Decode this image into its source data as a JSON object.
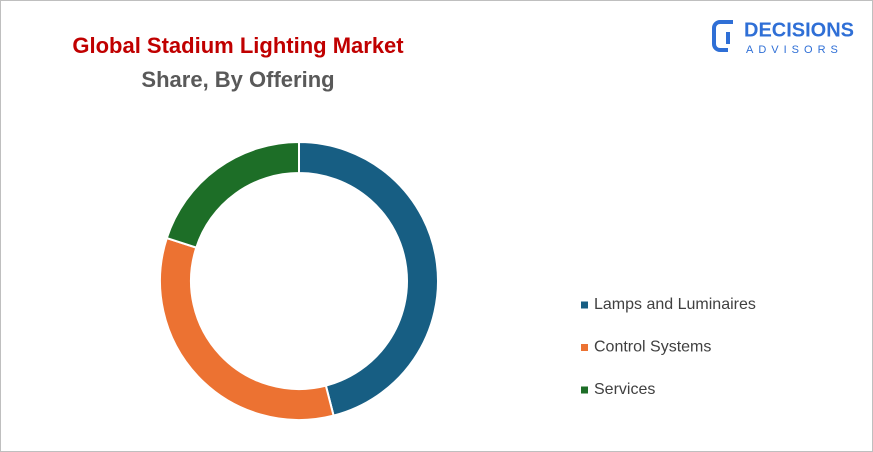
{
  "chart_data": {
    "type": "donut",
    "title": "Global Stadium Lighting Market",
    "subtitle": "Share, By Offering",
    "categories": [
      "Lamps and Luminaires",
      "Control Systems",
      "Services"
    ],
    "values": [
      46,
      34,
      20
    ],
    "colors": [
      "#175e83",
      "#ec7232",
      "#1d6e27"
    ],
    "legend": "right"
  },
  "logo": {
    "name": "DECISIONS",
    "tagline": "ADVISORS"
  }
}
